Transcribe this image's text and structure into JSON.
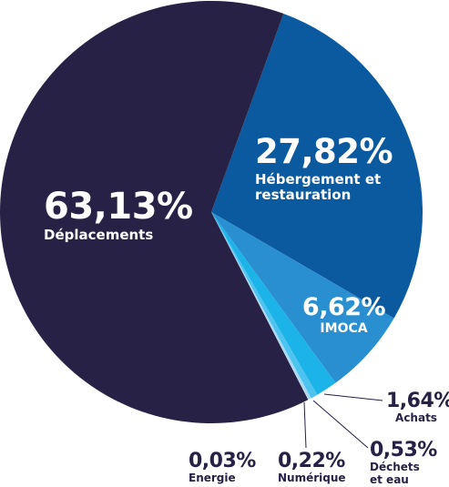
{
  "chart_data": {
    "type": "pie",
    "categories": [
      "Hébergement et restauration",
      "IMOCA",
      "Achats",
      "Déchets et eau",
      "Numérique",
      "Energie",
      "Déplacements"
    ],
    "values": [
      27.82,
      6.62,
      1.64,
      0.53,
      0.22,
      0.03,
      63.13
    ],
    "value_labels": [
      "27,82%",
      "6,62%",
      "1,64%",
      "0,53%",
      "0,22%",
      "0,03%",
      "63,13%"
    ],
    "colors": [
      "#0b5aa0",
      "#2a8fd1",
      "#1cb3e8",
      "#4cc4ef",
      "#a9d9f2",
      "#dcecf7",
      "#262145"
    ]
  }
}
